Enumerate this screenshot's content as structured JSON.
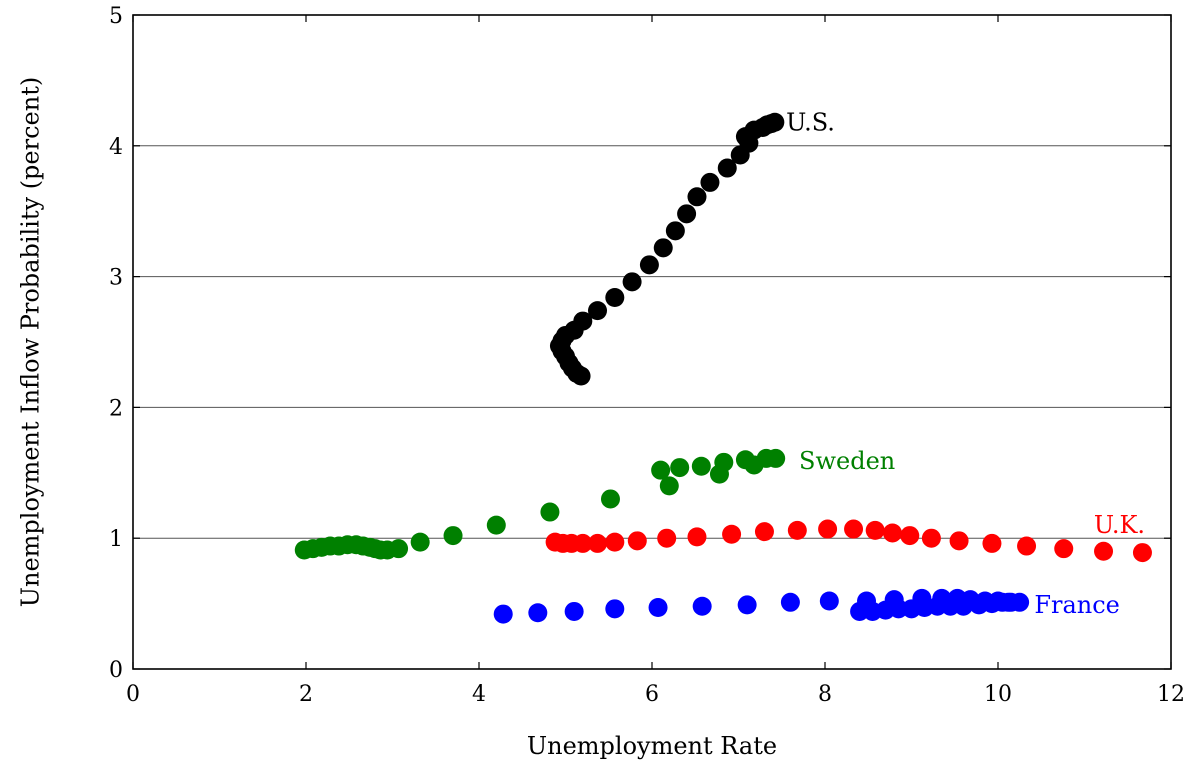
{
  "chart_data": {
    "type": "scatter",
    "xlabel": "Unemployment Rate",
    "ylabel": "Unemployment Inflow Probability (percent)",
    "xlim": [
      0,
      12
    ],
    "ylim": [
      0,
      5
    ],
    "xticks": [
      0,
      2,
      4,
      6,
      8,
      10,
      12
    ],
    "yticks": [
      0,
      1,
      2,
      3,
      4,
      5
    ],
    "grid": "horizontal",
    "series": [
      {
        "name": "U.S.",
        "color": "#000000",
        "label_at": [
          7.55,
          4.18
        ],
        "label_anchor": "start",
        "points": [
          [
            5.18,
            2.24
          ],
          [
            5.13,
            2.26
          ],
          [
            5.08,
            2.3
          ],
          [
            5.04,
            2.34
          ],
          [
            5.0,
            2.39
          ],
          [
            4.96,
            2.43
          ],
          [
            4.93,
            2.47
          ],
          [
            4.96,
            2.51
          ],
          [
            5.0,
            2.55
          ],
          [
            5.1,
            2.59
          ],
          [
            5.2,
            2.66
          ],
          [
            5.37,
            2.74
          ],
          [
            5.57,
            2.84
          ],
          [
            5.77,
            2.96
          ],
          [
            5.97,
            3.09
          ],
          [
            6.13,
            3.22
          ],
          [
            6.27,
            3.35
          ],
          [
            6.4,
            3.48
          ],
          [
            6.52,
            3.61
          ],
          [
            6.67,
            3.72
          ],
          [
            6.87,
            3.83
          ],
          [
            7.02,
            3.93
          ],
          [
            7.12,
            4.02
          ],
          [
            7.08,
            4.07
          ],
          [
            7.18,
            4.12
          ],
          [
            7.28,
            4.14
          ],
          [
            7.33,
            4.16
          ],
          [
            7.38,
            4.17
          ],
          [
            7.42,
            4.18
          ]
        ]
      },
      {
        "name": "Sweden",
        "color": "#008000",
        "label_at": [
          7.7,
          1.59
        ],
        "label_anchor": "start",
        "points": [
          [
            1.98,
            0.91
          ],
          [
            2.08,
            0.92
          ],
          [
            2.18,
            0.93
          ],
          [
            2.28,
            0.94
          ],
          [
            2.38,
            0.94
          ],
          [
            2.48,
            0.95
          ],
          [
            2.58,
            0.95
          ],
          [
            2.66,
            0.94
          ],
          [
            2.74,
            0.93
          ],
          [
            2.8,
            0.92
          ],
          [
            2.86,
            0.91
          ],
          [
            2.94,
            0.91
          ],
          [
            3.07,
            0.92
          ],
          [
            3.32,
            0.97
          ],
          [
            3.7,
            1.02
          ],
          [
            4.2,
            1.1
          ],
          [
            4.82,
            1.2
          ],
          [
            5.52,
            1.3
          ],
          [
            6.1,
            1.52
          ],
          [
            6.2,
            1.4
          ],
          [
            6.32,
            1.54
          ],
          [
            6.57,
            1.55
          ],
          [
            6.78,
            1.49
          ],
          [
            6.83,
            1.58
          ],
          [
            7.08,
            1.6
          ],
          [
            7.18,
            1.56
          ],
          [
            7.32,
            1.61
          ],
          [
            7.43,
            1.61
          ]
        ]
      },
      {
        "name": "U.K.",
        "color": "#ff0000",
        "label_at": [
          11.7,
          1.1
        ],
        "label_anchor": "end",
        "points": [
          [
            4.88,
            0.97
          ],
          [
            4.97,
            0.96
          ],
          [
            5.07,
            0.96
          ],
          [
            5.2,
            0.96
          ],
          [
            5.37,
            0.96
          ],
          [
            5.57,
            0.97
          ],
          [
            5.83,
            0.98
          ],
          [
            6.17,
            1.0
          ],
          [
            6.52,
            1.01
          ],
          [
            6.92,
            1.03
          ],
          [
            7.3,
            1.05
          ],
          [
            7.68,
            1.06
          ],
          [
            8.03,
            1.07
          ],
          [
            8.33,
            1.07
          ],
          [
            8.58,
            1.06
          ],
          [
            8.78,
            1.04
          ],
          [
            8.98,
            1.02
          ],
          [
            9.23,
            1.0
          ],
          [
            9.55,
            0.98
          ],
          [
            9.93,
            0.96
          ],
          [
            10.33,
            0.94
          ],
          [
            10.76,
            0.92
          ],
          [
            11.22,
            0.9
          ],
          [
            11.67,
            0.89
          ]
        ]
      },
      {
        "name": "France",
        "color": "#0000ff",
        "label_at": [
          10.42,
          0.49
        ],
        "label_anchor": "start",
        "points": [
          [
            4.28,
            0.42
          ],
          [
            4.68,
            0.43
          ],
          [
            5.1,
            0.44
          ],
          [
            5.57,
            0.46
          ],
          [
            6.07,
            0.47
          ],
          [
            6.58,
            0.48
          ],
          [
            7.1,
            0.49
          ],
          [
            7.6,
            0.51
          ],
          [
            8.05,
            0.52
          ],
          [
            8.4,
            0.44
          ],
          [
            8.55,
            0.44
          ],
          [
            8.7,
            0.45
          ],
          [
            8.85,
            0.46
          ],
          [
            9.0,
            0.46
          ],
          [
            9.15,
            0.47
          ],
          [
            9.3,
            0.48
          ],
          [
            9.45,
            0.48
          ],
          [
            9.6,
            0.48
          ],
          [
            9.78,
            0.49
          ],
          [
            9.93,
            0.5
          ],
          [
            10.05,
            0.51
          ],
          [
            10.15,
            0.51
          ],
          [
            10.25,
            0.51
          ],
          [
            8.48,
            0.52
          ],
          [
            8.8,
            0.53
          ],
          [
            9.12,
            0.54
          ],
          [
            9.35,
            0.54
          ],
          [
            9.53,
            0.54
          ],
          [
            9.68,
            0.53
          ],
          [
            9.85,
            0.52
          ],
          [
            10.0,
            0.52
          ],
          [
            10.12,
            0.51
          ]
        ]
      }
    ]
  }
}
